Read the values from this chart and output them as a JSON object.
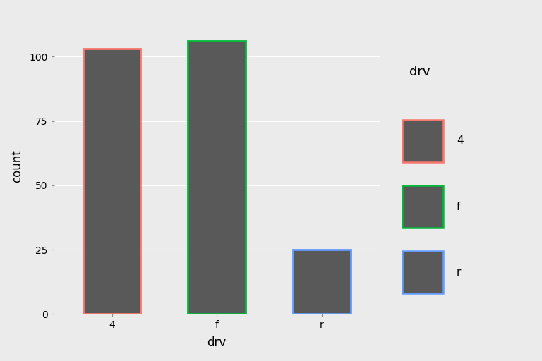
{
  "categories": [
    "4",
    "f",
    "r"
  ],
  "values": [
    103,
    106,
    25
  ],
  "bar_fill_color": "#595959",
  "border_colors": [
    "#F8766D",
    "#00BA38",
    "#619CFF"
  ],
  "border_width": 2.0,
  "ylabel": "count",
  "xlabel": "drv",
  "legend_title": "drv",
  "legend_labels": [
    "4",
    "f",
    "r"
  ],
  "yticks": [
    0,
    25,
    50,
    75,
    100
  ],
  "ylim": [
    0,
    115
  ],
  "bg_color": "#EBEBEB",
  "panel_bg": "#EBEBEB",
  "grid_color": "#FFFFFF",
  "axis_label_fontsize": 12,
  "tick_fontsize": 10,
  "legend_fontsize": 11,
  "legend_title_fontsize": 13
}
